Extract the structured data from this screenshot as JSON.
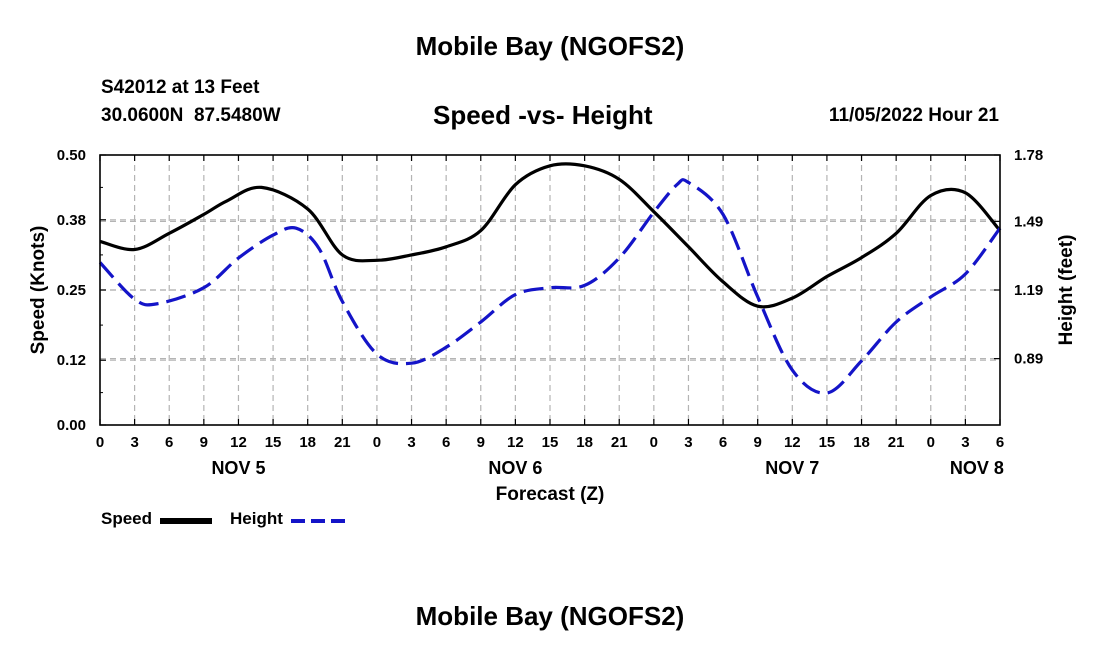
{
  "page": {
    "title": "Mobile Bay (NGOFS2)",
    "station": "S42012 at 13 Feet",
    "coords": "30.0600N  87.5480W",
    "date_label": "11/05/2022 Hour 21",
    "footer_title": "Mobile Bay (NGOFS2)"
  },
  "legend": {
    "speed_label": "Speed",
    "height_label": "Height"
  },
  "colors": {
    "speed": "#000000",
    "height": "#1414c8",
    "grid": "#b4b4b4"
  },
  "chart_data": {
    "type": "line",
    "title": "Speed -vs- Height",
    "xlabel": "Forecast (Z)",
    "ylabel_left": "Speed (Knots)",
    "ylabel_right": "Height (feet)",
    "x_unit": "hours from 2022-11-05 00Z",
    "xlim": [
      0,
      78
    ],
    "ylim_left": [
      0,
      0.5
    ],
    "ylim_right": [
      0.6,
      1.78
    ],
    "x_ticks": [
      0,
      3,
      6,
      9,
      12,
      15,
      18,
      21,
      24,
      27,
      30,
      33,
      36,
      39,
      42,
      45,
      48,
      51,
      54,
      57,
      60,
      63,
      66,
      69,
      72,
      75,
      78
    ],
    "x_tick_labels": [
      "0",
      "3",
      "6",
      "9",
      "12",
      "15",
      "18",
      "21",
      "0",
      "3",
      "6",
      "9",
      "12",
      "15",
      "18",
      "21",
      "0",
      "3",
      "6",
      "9",
      "12",
      "15",
      "18",
      "21",
      "0",
      "3",
      "6"
    ],
    "date_labels": [
      {
        "x": 12,
        "label": "NOV 5"
      },
      {
        "x": 36,
        "label": "NOV 6"
      },
      {
        "x": 60,
        "label": "NOV 7"
      },
      {
        "x": 76,
        "label": "NOV 8"
      }
    ],
    "y_ticks_left": [
      0.0,
      0.12,
      0.25,
      0.38,
      0.5
    ],
    "y_tick_labels_left": [
      "0.00",
      "0.12",
      "0.25",
      "0.38",
      "0.50"
    ],
    "y_ticks_right": [
      0.89,
      1.19,
      1.49,
      1.78
    ],
    "y_tick_labels_right": [
      "0.89",
      "1.19",
      "1.49",
      "1.78"
    ],
    "grid": true,
    "legend_position": "bottom-left",
    "series": [
      {
        "name": "Speed",
        "axis": "left",
        "style": "solid",
        "x": [
          0,
          3,
          6,
          9,
          11,
          14,
          18,
          21,
          24,
          27,
          30,
          33,
          36,
          39,
          42,
          45,
          48,
          51,
          54,
          57,
          60,
          63,
          66,
          69,
          72,
          75,
          78
        ],
        "values": [
          0.34,
          0.325,
          0.355,
          0.39,
          0.415,
          0.44,
          0.4,
          0.315,
          0.305,
          0.315,
          0.33,
          0.36,
          0.445,
          0.48,
          0.48,
          0.455,
          0.395,
          0.33,
          0.265,
          0.22,
          0.235,
          0.275,
          0.31,
          0.355,
          0.425,
          0.43,
          0.36
        ]
      },
      {
        "name": "Height",
        "axis": "right",
        "style": "dashed",
        "x": [
          0,
          3,
          5,
          9,
          12,
          15,
          17,
          19,
          21,
          24,
          27,
          30,
          33,
          36,
          39,
          42,
          45,
          48,
          50,
          51,
          54,
          57,
          60,
          63,
          66,
          69,
          72,
          75,
          78
        ],
        "values": [
          1.31,
          1.15,
          1.13,
          1.2,
          1.33,
          1.43,
          1.46,
          1.37,
          1.14,
          0.91,
          0.87,
          0.94,
          1.05,
          1.17,
          1.2,
          1.21,
          1.33,
          1.53,
          1.65,
          1.66,
          1.52,
          1.16,
          0.84,
          0.74,
          0.88,
          1.05,
          1.16,
          1.26,
          1.46
        ]
      }
    ]
  }
}
